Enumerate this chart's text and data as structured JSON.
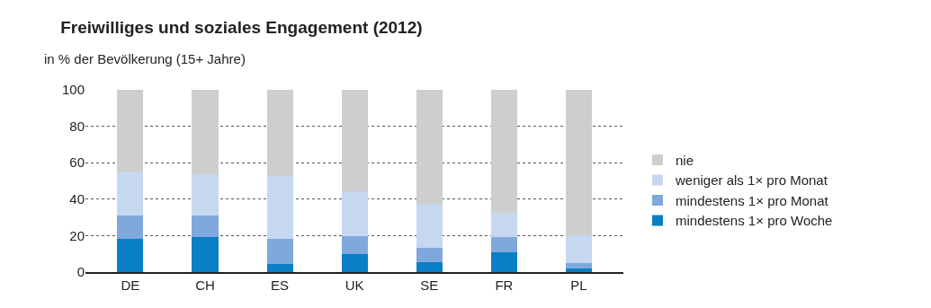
{
  "chart_data": {
    "type": "bar",
    "stacked": true,
    "title": "Freiwilliges und soziales Engagement (2012)",
    "subtitle": "in % der Bevölkerung (15+ Jahre)",
    "categories": [
      "DE",
      "CH",
      "ES",
      "UK",
      "SE",
      "FR",
      "PL"
    ],
    "series": [
      {
        "name": "mindestens 1× pro Woche",
        "color": "#0a7fc6",
        "values": [
          18,
          19,
          4.5,
          10,
          5.5,
          11,
          2
        ]
      },
      {
        "name": "mindestens 1× pro Monat",
        "color": "#7fa8dc",
        "values": [
          13,
          12,
          13.5,
          9.5,
          8,
          8,
          3
        ]
      },
      {
        "name": "weniger als 1× pro Monat",
        "color": "#c6d7f0",
        "values": [
          24,
          22.5,
          34.5,
          25,
          24,
          13.5,
          15
        ]
      },
      {
        "name": "nie",
        "color": "#cecece",
        "values": [
          45,
          46.5,
          47.5,
          55.5,
          62.5,
          67.5,
          80
        ]
      }
    ],
    "ylim": [
      0,
      100
    ],
    "yticks": [
      0,
      20,
      40,
      60,
      80,
      100
    ],
    "grid": "y",
    "legend": "right"
  }
}
